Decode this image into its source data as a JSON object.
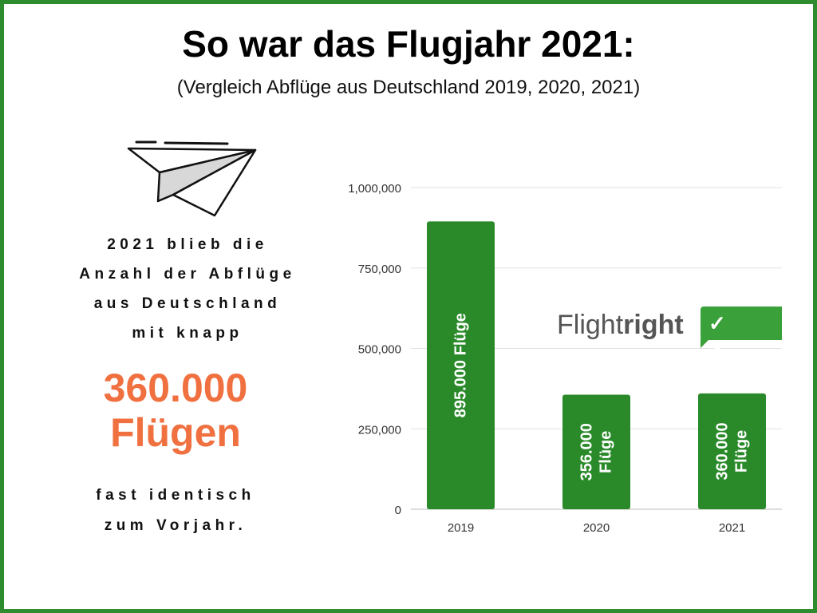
{
  "header": {
    "title": "So war das Flugjahr 2021:",
    "subtitle": "(Vergleich Abflüge aus Deutschland 2019, 2020, 2021)"
  },
  "left": {
    "lead_lines": [
      "2021 blieb die",
      "Anzahl der Abflüge",
      "aus Deutschland",
      "mit knapp"
    ],
    "highlight_number": "360.000",
    "highlight_word": "Flügen",
    "tail_lines": [
      "fast identisch",
      "zum Vorjahr."
    ]
  },
  "logo": {
    "text_regular": "Flight",
    "text_bold": "right",
    "badge_marks": "✓ ✕ ✓"
  },
  "colors": {
    "frame": "#2e8b2e",
    "bar": "#2a8a2a",
    "highlight": "#f07040",
    "logo_green": "#3aa13a"
  },
  "chart_data": {
    "type": "bar",
    "categories": [
      "2019",
      "2020",
      "2021"
    ],
    "values": [
      895000,
      356000,
      360000
    ],
    "bar_labels": [
      [
        "895.000 Flüge"
      ],
      [
        "356.000",
        "Flüge"
      ],
      [
        "360.000",
        "Flüge"
      ]
    ],
    "y_ticks": [
      0,
      250000,
      500000,
      750000,
      1000000
    ],
    "y_tick_labels": [
      "0",
      "250,000",
      "500,000",
      "750,000",
      "1,000,000"
    ],
    "ylim": [
      0,
      1000000
    ],
    "grid": true,
    "title": "",
    "xlabel": "",
    "ylabel": ""
  }
}
